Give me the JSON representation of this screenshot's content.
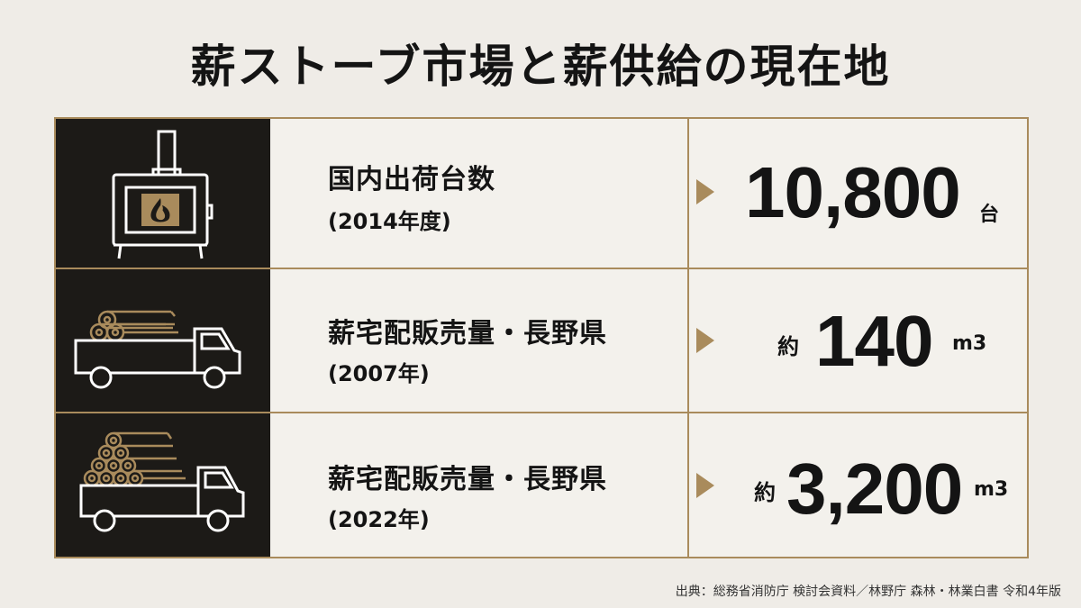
{
  "title": "薪ストーブ市場と薪供給の現在地",
  "rows": [
    {
      "icon": "wood-stove-icon",
      "label": "国内出荷台数",
      "sublabel": "(2014年度)",
      "prefix": "",
      "value": "10,800",
      "unit": "台"
    },
    {
      "icon": "small-log-truck-icon",
      "label": "薪宅配販売量・長野県",
      "sublabel": "(2007年)",
      "prefix": "約",
      "value": "140",
      "unit": "m3"
    },
    {
      "icon": "large-log-truck-icon",
      "label": "薪宅配販売量・長野県",
      "sublabel": "(2022年)",
      "prefix": "約",
      "value": "3,200",
      "unit": "m3"
    }
  ],
  "source": "出典：総務省消防庁 検討会資料／林野庁 森林・林業白書 令和4年版",
  "colors": {
    "background": "#efece7",
    "dark_panel": "#1c1a17",
    "accent_gold": "#a98b5c",
    "text": "#141414"
  }
}
